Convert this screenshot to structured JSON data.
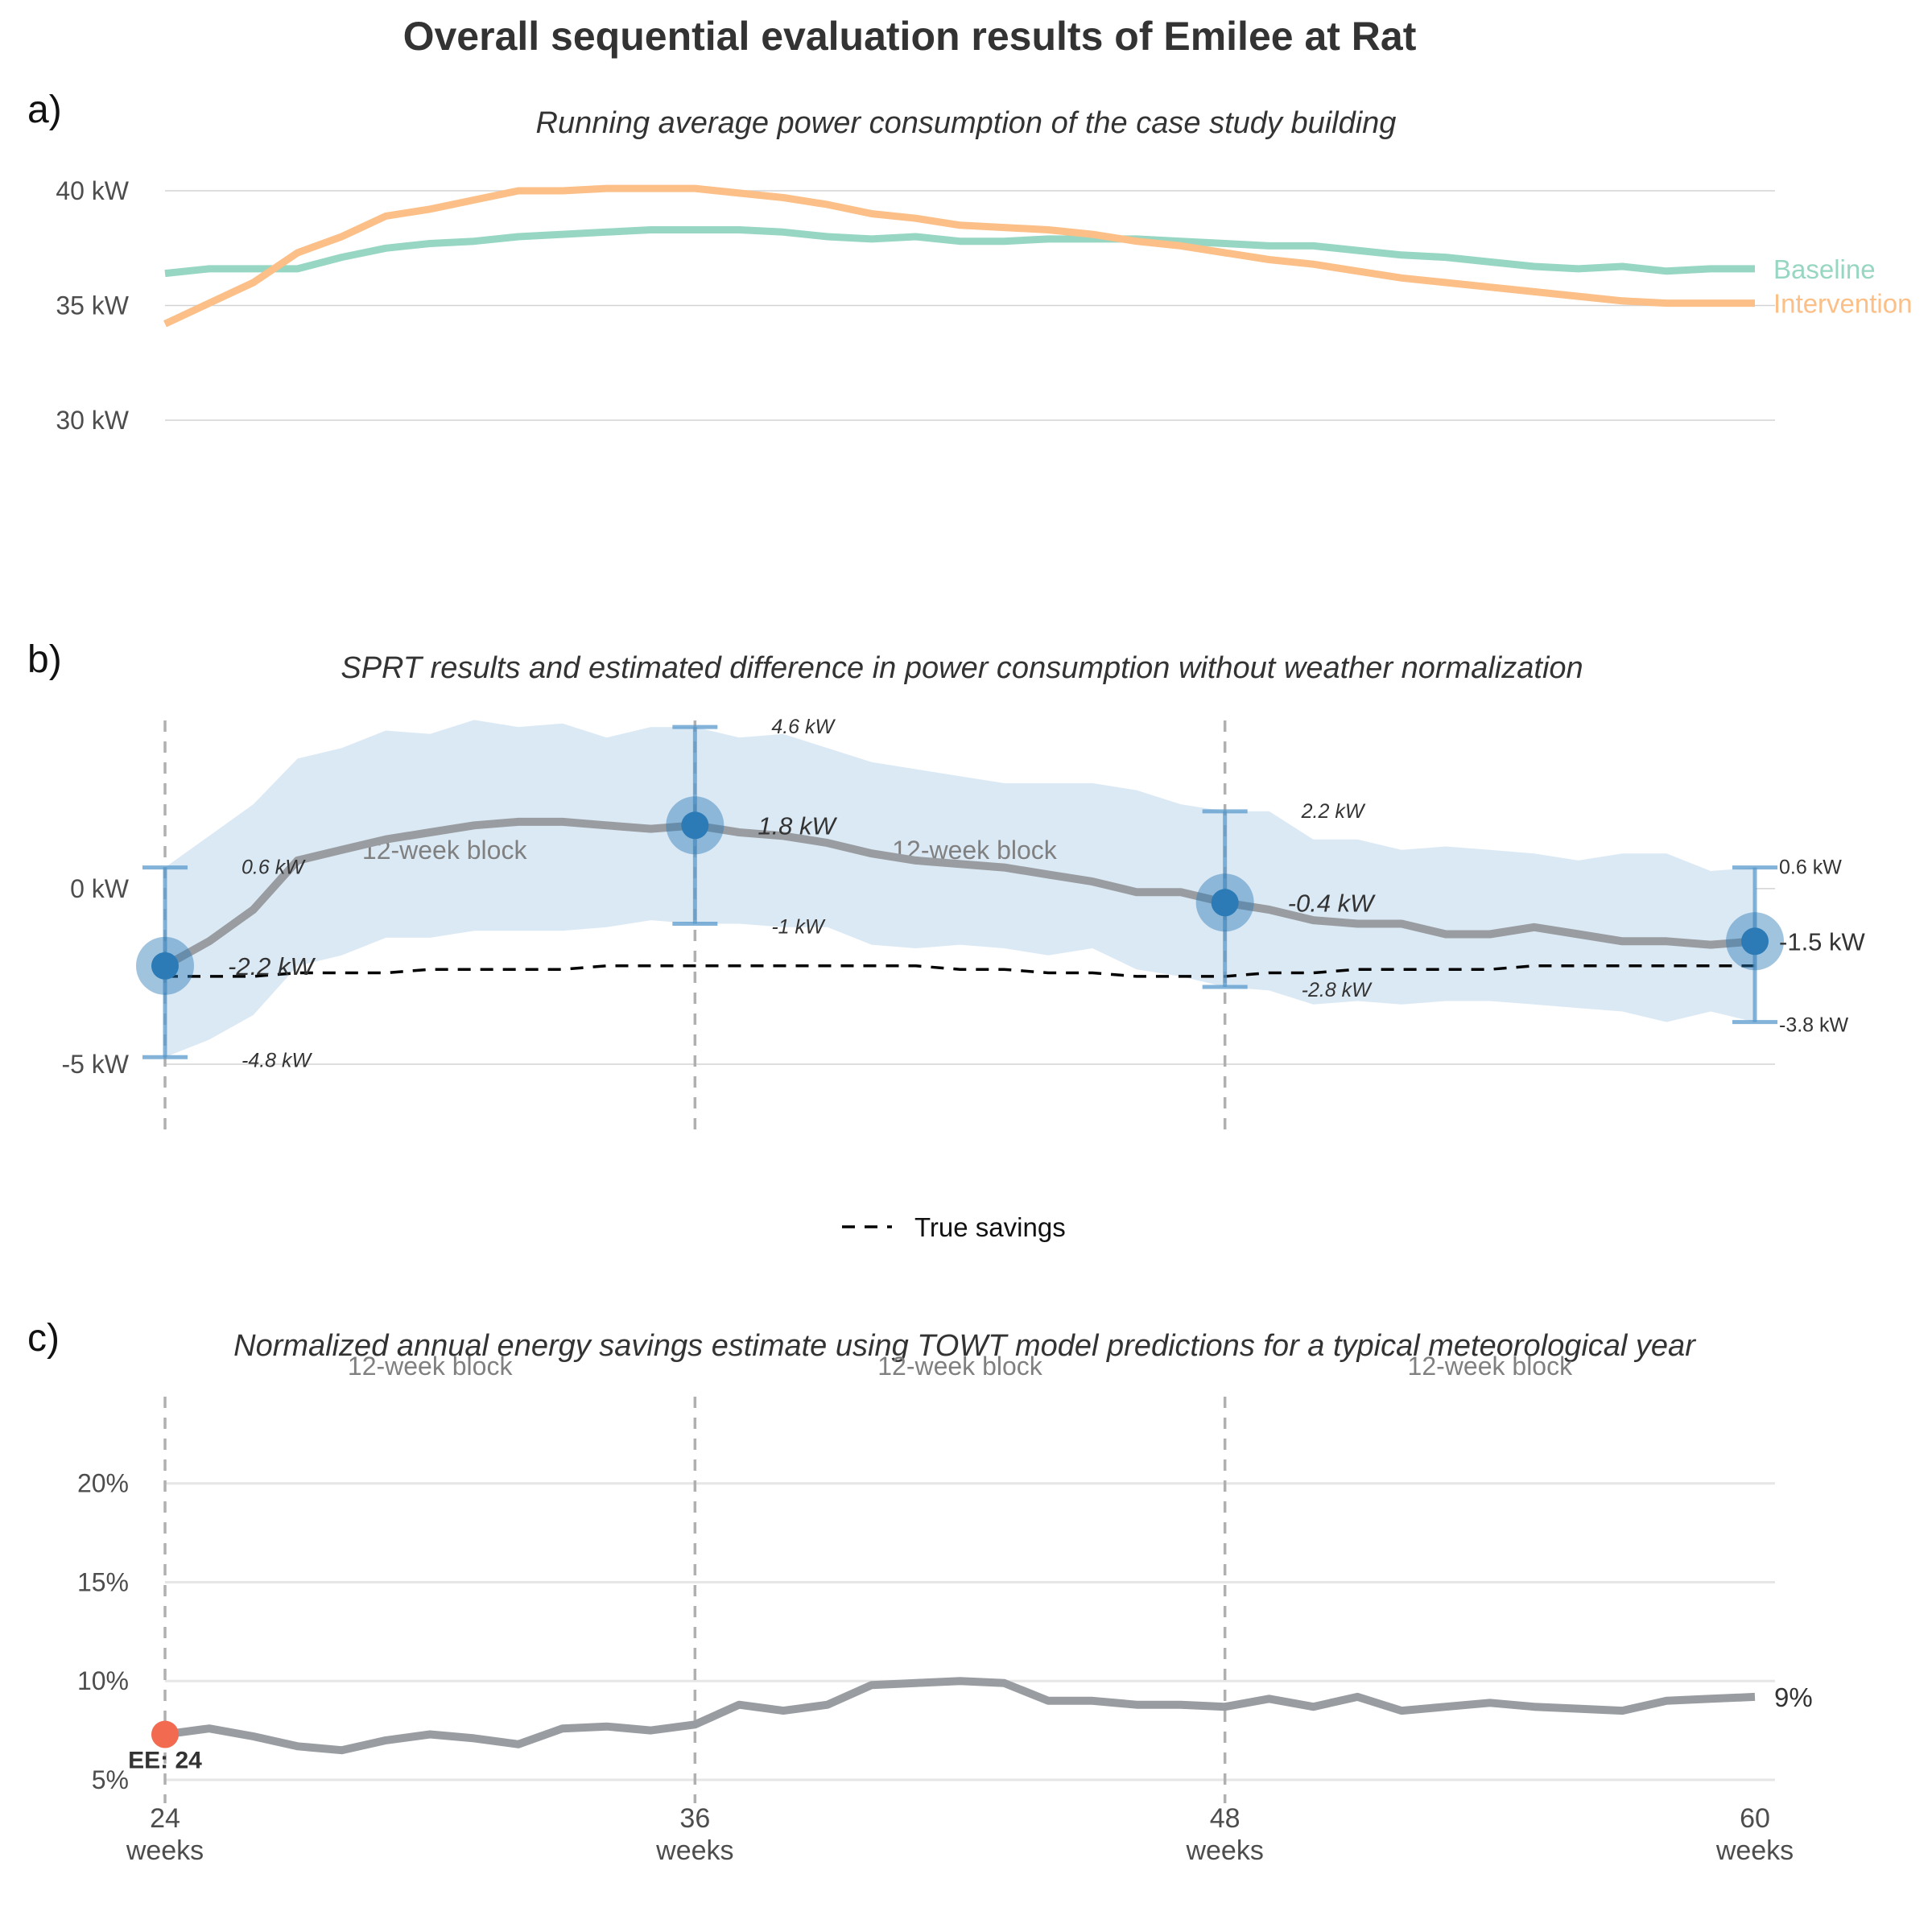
{
  "title": "Overall sequential evaluation results of Emilee at Rat",
  "x_weeks": [
    24,
    25,
    26,
    27,
    28,
    29,
    30,
    31,
    32,
    33,
    34,
    35,
    36,
    37,
    38,
    39,
    40,
    41,
    42,
    43,
    44,
    45,
    46,
    47,
    48,
    49,
    50,
    51,
    52,
    53,
    54,
    55,
    56,
    57,
    58,
    59,
    60
  ],
  "x_ticks": [
    {
      "value": 24,
      "line1": "24",
      "line2": "weeks"
    },
    {
      "value": 36,
      "line1": "36",
      "line2": "weeks"
    },
    {
      "value": 48,
      "line1": "48",
      "line2": "weeks"
    },
    {
      "value": 60,
      "line1": "60",
      "line2": "weeks"
    }
  ],
  "panels": {
    "a": {
      "letter": "a)",
      "subtitle": "Running average power consumption of the case study building",
      "y_ticks": [
        "40 kW",
        "35 kW",
        "30 kW"
      ],
      "chart_data": {
        "type": "line",
        "ylim": [
          26,
          42
        ],
        "y_tick_values": [
          40,
          35,
          30
        ],
        "series": [
          {
            "name": "Baseline",
            "color": "#97d6c3",
            "values": [
              36.4,
              36.6,
              36.6,
              36.6,
              37.1,
              37.5,
              37.7,
              37.8,
              38.0,
              38.1,
              38.2,
              38.3,
              38.3,
              38.3,
              38.2,
              38.0,
              37.9,
              38.0,
              37.8,
              37.8,
              37.9,
              37.9,
              37.9,
              37.8,
              37.7,
              37.6,
              37.6,
              37.4,
              37.2,
              37.1,
              36.9,
              36.7,
              36.6,
              36.7,
              36.5,
              36.6,
              36.6
            ]
          },
          {
            "name": "Intervention",
            "color": "#fbbf87",
            "values": [
              34.2,
              35.1,
              36.0,
              37.3,
              38.0,
              38.9,
              39.2,
              39.6,
              40.0,
              40.0,
              40.1,
              40.1,
              40.1,
              39.9,
              39.7,
              39.4,
              39.0,
              38.8,
              38.5,
              38.4,
              38.3,
              38.1,
              37.8,
              37.6,
              37.3,
              37.0,
              36.8,
              36.5,
              36.2,
              36.0,
              35.8,
              35.6,
              35.4,
              35.2,
              35.1,
              35.1,
              35.1
            ]
          }
        ]
      }
    },
    "b": {
      "letter": "b)",
      "subtitle": "SPRT results and estimated difference in power consumption without weather normalization",
      "y_ticks": [
        "0 kW",
        "-5 kW"
      ],
      "block_labels": [
        "12-week block",
        "12-week block"
      ],
      "legend_label": "True savings",
      "chart_data": {
        "type": "line",
        "ylim": [
          -7.2,
          4.9
        ],
        "y_tick_values": [
          0,
          -5
        ],
        "estimate": [
          -2.2,
          -1.5,
          -0.6,
          0.8,
          1.1,
          1.4,
          1.6,
          1.8,
          1.9,
          1.9,
          1.8,
          1.7,
          1.8,
          1.6,
          1.5,
          1.3,
          1.0,
          0.8,
          0.7,
          0.6,
          0.4,
          0.2,
          -0.1,
          -0.1,
          -0.4,
          -0.6,
          -0.9,
          -1.0,
          -1.0,
          -1.3,
          -1.3,
          -1.1,
          -1.3,
          -1.5,
          -1.5,
          -1.6,
          -1.5
        ],
        "ci_upper": [
          0.6,
          1.5,
          2.4,
          3.7,
          4.0,
          4.5,
          4.4,
          4.8,
          4.6,
          4.7,
          4.3,
          4.6,
          4.6,
          4.3,
          4.4,
          4.0,
          3.6,
          3.4,
          3.2,
          3.0,
          3.0,
          3.0,
          2.8,
          2.4,
          2.2,
          2.2,
          1.4,
          1.4,
          1.1,
          1.2,
          1.1,
          1.0,
          0.8,
          1.0,
          1.0,
          0.5,
          0.6
        ],
        "ci_lower": [
          -4.8,
          -4.3,
          -3.6,
          -2.2,
          -1.9,
          -1.4,
          -1.4,
          -1.2,
          -1.2,
          -1.2,
          -1.1,
          -0.9,
          -1.0,
          -1.0,
          -1.1,
          -1.1,
          -1.6,
          -1.7,
          -1.6,
          -1.7,
          -1.9,
          -1.7,
          -2.3,
          -2.5,
          -2.8,
          -2.9,
          -3.3,
          -3.2,
          -3.3,
          -3.2,
          -3.2,
          -3.3,
          -3.4,
          -3.5,
          -3.8,
          -3.5,
          -3.8
        ],
        "true_savings": [
          -2.5,
          -2.5,
          -2.5,
          -2.4,
          -2.4,
          -2.4,
          -2.3,
          -2.3,
          -2.3,
          -2.3,
          -2.2,
          -2.2,
          -2.2,
          -2.2,
          -2.2,
          -2.2,
          -2.2,
          -2.2,
          -2.3,
          -2.3,
          -2.4,
          -2.4,
          -2.5,
          -2.5,
          -2.5,
          -2.4,
          -2.4,
          -2.3,
          -2.3,
          -2.3,
          -2.3,
          -2.2,
          -2.2,
          -2.2,
          -2.2,
          -2.2,
          -2.2
        ],
        "checkpoints": [
          {
            "week": 24,
            "estimate": -2.2,
            "upper": 0.6,
            "lower": -4.8,
            "estimate_label": "-2.2 kW",
            "upper_label": "0.6 kW",
            "lower_label": "-4.8 kW"
          },
          {
            "week": 36,
            "estimate": 1.8,
            "upper": 4.6,
            "lower": -1.0,
            "estimate_label": "1.8 kW",
            "upper_label": "4.6 kW",
            "lower_label": "-1 kW"
          },
          {
            "week": 48,
            "estimate": -0.4,
            "upper": 2.2,
            "lower": -2.8,
            "estimate_label": "-0.4 kW",
            "upper_label": "2.2 kW",
            "lower_label": "-2.8 kW"
          },
          {
            "week": 60,
            "estimate": -1.5,
            "upper": 0.6,
            "lower": -3.8,
            "estimate_label": "-1.5 kW",
            "upper_label": "0.6 kW",
            "lower_label": "-3.8 kW"
          }
        ]
      }
    },
    "c": {
      "letter": "c)",
      "subtitle": "Normalized annual energy savings estimate using TOWT model predictions for a typical meteorological year",
      "y_ticks": [
        "20%",
        "15%",
        "10%",
        "5%"
      ],
      "block_labels": [
        "12-week block",
        "12-week block",
        "12-week block"
      ],
      "ee_label": "EE: 24",
      "end_label": "9%",
      "chart_data": {
        "type": "line",
        "ylim": [
          5,
          25
        ],
        "y_tick_values": [
          20,
          15,
          10,
          5
        ],
        "values": [
          7.3,
          7.6,
          7.2,
          6.7,
          6.5,
          7.0,
          7.3,
          7.1,
          6.8,
          7.6,
          7.7,
          7.5,
          7.8,
          8.8,
          8.5,
          8.8,
          9.8,
          9.9,
          10.0,
          9.9,
          9.0,
          9.0,
          8.8,
          8.8,
          8.7,
          9.1,
          8.7,
          9.2,
          8.5,
          8.7,
          8.9,
          8.7,
          8.6,
          8.5,
          9.0,
          9.1,
          9.2
        ],
        "early_estimate": {
          "week": 24,
          "value": 7.3
        }
      }
    }
  },
  "colors": {
    "baseline": "#97d6c3",
    "intervention": "#fbbf87",
    "estimate_line": "#999da1",
    "ci_band": "#dbe9f5",
    "marker": "#2c7bb6",
    "true_savings": "#000000",
    "ee_point": "#f26a4f",
    "grid": "#d3d3d3"
  }
}
